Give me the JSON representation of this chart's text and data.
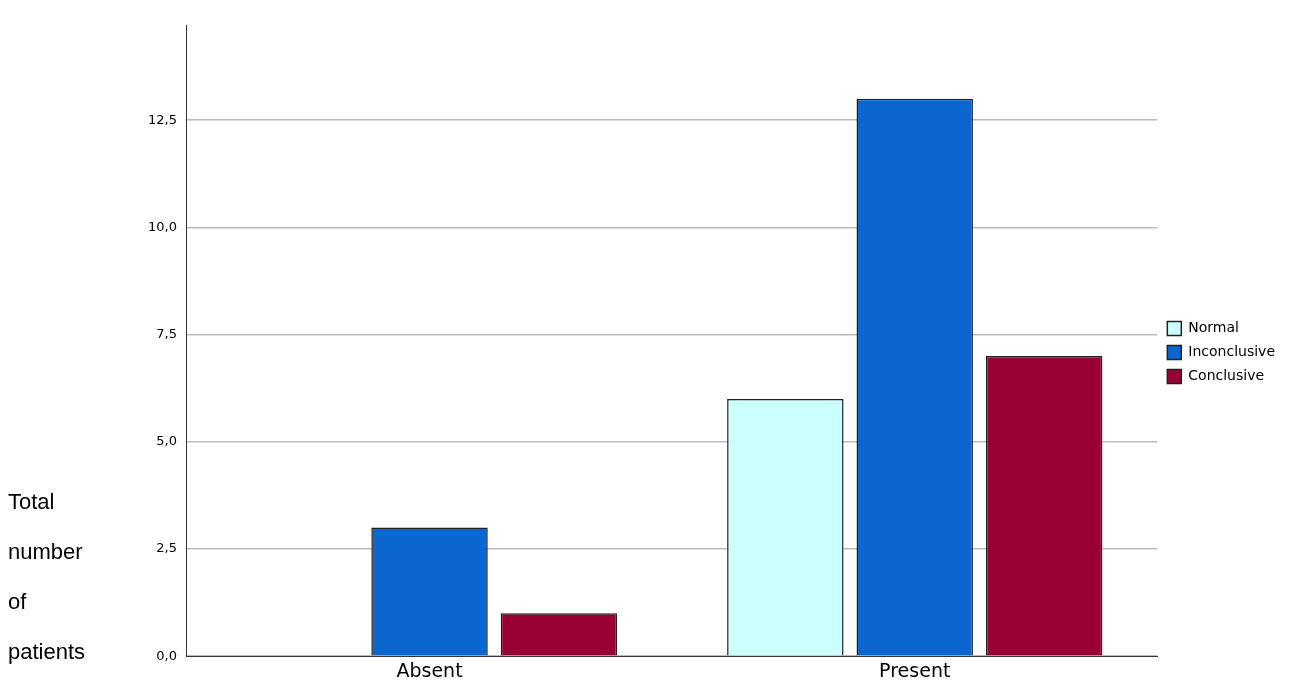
{
  "chart_data": {
    "type": "bar",
    "ylabel": "Total number of patients",
    "categories": [
      "Absent",
      "Present"
    ],
    "series": [
      {
        "name": "Normal",
        "color": "#ccffff",
        "values": [
          0,
          6
        ]
      },
      {
        "name": "Inconclusive",
        "color": "#0b66d0",
        "values": [
          3,
          13
        ]
      },
      {
        "name": "Conclusive",
        "color": "#990033",
        "values": [
          1,
          7
        ]
      }
    ],
    "ylim": [
      0,
      14.7
    ],
    "yticks": [
      {
        "value": 0,
        "label": "0,0"
      },
      {
        "value": 2.5,
        "label": "2,5"
      },
      {
        "value": 5,
        "label": "5,0"
      },
      {
        "value": 7.5,
        "label": "7,5"
      },
      {
        "value": 10,
        "label": "10,0"
      },
      {
        "value": 12.5,
        "label": "12,5"
      }
    ],
    "grid": "y",
    "legend": "right"
  }
}
